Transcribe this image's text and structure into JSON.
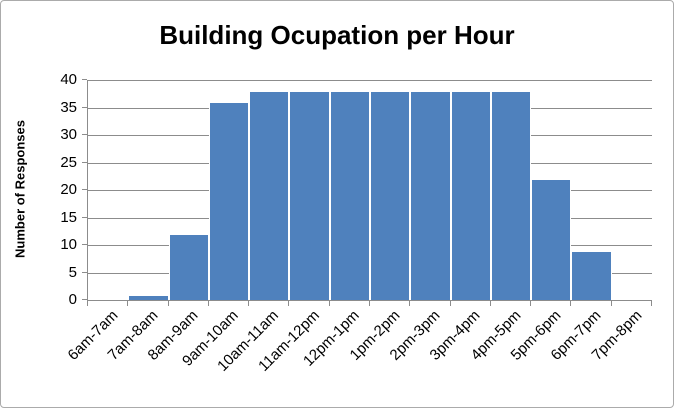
{
  "chart_data": {
    "type": "bar",
    "title": "Building Ocupation per Hour",
    "xlabel": "",
    "ylabel": "Number of Responses",
    "categories": [
      "6am-7am",
      "7am-8am",
      "8am-9am",
      "9am-10am",
      "10am-11am",
      "11am-12pm",
      "12pm-1pm",
      "1pm-2pm",
      "2pm-3pm",
      "3pm-4pm",
      "4pm-5pm",
      "5pm-6pm",
      "6pm-7pm",
      "7pm-8pm"
    ],
    "values": [
      0,
      1,
      12,
      36,
      38,
      38,
      38,
      38,
      38,
      38,
      38,
      22,
      9,
      0
    ],
    "ylim": [
      0,
      40
    ],
    "yticks": [
      0,
      5,
      10,
      15,
      20,
      25,
      30,
      35,
      40
    ],
    "grid": "horizontal",
    "legend": "none",
    "colors": {
      "bar_fill": "#4F81BD",
      "bar_border": "#FFFFFF",
      "gridline": "#8C8C8C",
      "axis_line": "#8C8C8C",
      "text": "#000000",
      "chart_border": "#ABABAB",
      "background": "#FFFFFF"
    }
  }
}
